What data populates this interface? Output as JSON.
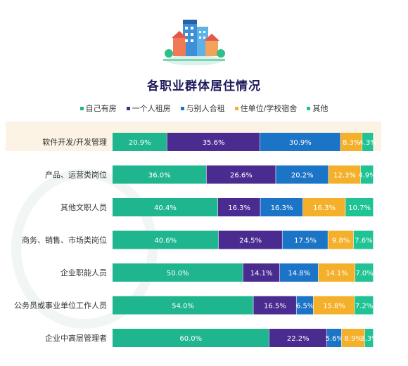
{
  "title": "各职业群体居住情况",
  "colors": {
    "own": "#1fb68f",
    "rent_alone": "#4a2c91",
    "shared_rent": "#1c74c7",
    "dorm": "#f4b02a",
    "other": "#1fc394",
    "highlight": "#fcf3e4",
    "title": "#1e1b5c"
  },
  "chart_data": {
    "type": "bar",
    "orientation": "horizontal",
    "stacked": true,
    "title": "各职业群体居住情况",
    "xlabel": "",
    "ylabel": "",
    "legend_position": "top",
    "grid": false,
    "categories": [
      "软件开发/开发管理",
      "产品、运营类岗位",
      "其他文职人员",
      "商务、销售、市场类岗位",
      "企业职能人员",
      "公务员或事业单位工作人员",
      "企业中高层管理者"
    ],
    "series": [
      {
        "name": "自己有房",
        "values": [
          20.9,
          36.0,
          40.4,
          40.6,
          50.0,
          54.0,
          60.0
        ]
      },
      {
        "name": "一个人租房",
        "values": [
          35.6,
          26.6,
          16.3,
          24.5,
          14.1,
          16.5,
          22.2
        ]
      },
      {
        "name": "与别人合租",
        "values": [
          30.9,
          20.2,
          16.3,
          17.5,
          14.8,
          6.5,
          5.6
        ]
      },
      {
        "name": "住单位/学校宿舍",
        "values": [
          8.3,
          12.3,
          16.3,
          9.8,
          14.1,
          15.8,
          8.9
        ]
      },
      {
        "name": "其他",
        "values": [
          4.3,
          4.9,
          10.7,
          7.6,
          7.0,
          7.2,
          3.3
        ]
      }
    ],
    "value_labels": [
      [
        "20.9%",
        "35.6%",
        "30.9%",
        "8.3%",
        "4.3%"
      ],
      [
        "36.0%",
        "26.6%",
        "20.2%",
        "12.3%",
        "4.9%"
      ],
      [
        "40.4%",
        "16.3%",
        "16.3%",
        "16.3%",
        "10.7%"
      ],
      [
        "40.6%",
        "24.5%",
        "17.5%",
        "9.8%",
        "7.6%"
      ],
      [
        "50.0%",
        "14.1%",
        "14.8%",
        "14.1%",
        "7.0%"
      ],
      [
        "54.0%",
        "16.5%",
        "6.5%",
        "15.8%",
        "7.2%"
      ],
      [
        "60.0%",
        "22.2%",
        "5.6%",
        "8.9%",
        "3.3%"
      ]
    ],
    "highlighted_category": "软件开发/开发管理"
  }
}
